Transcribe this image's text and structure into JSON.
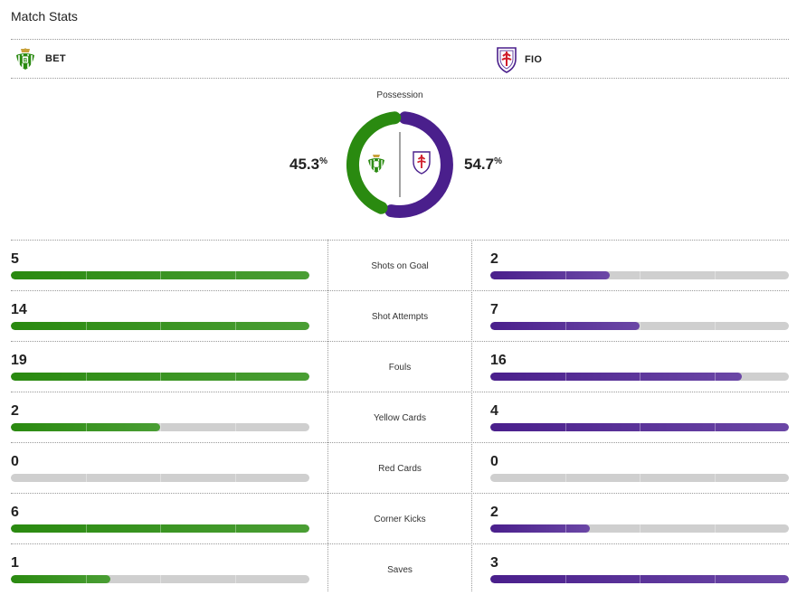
{
  "header": {
    "title": "Match Stats"
  },
  "teams": {
    "home": {
      "abbr": "BET",
      "color": "#2a8a10",
      "crest": "betis-crest-icon"
    },
    "away": {
      "abbr": "FIO",
      "color": "#4a1f8c",
      "crest": "fiorentina-crest-icon"
    }
  },
  "possession": {
    "label": "Possession",
    "home_value": "45.3",
    "away_value": "54.7",
    "unit": "%"
  },
  "stats": [
    {
      "label": "Shots on Goal",
      "home": "5",
      "away": "2"
    },
    {
      "label": "Shot Attempts",
      "home": "14",
      "away": "7"
    },
    {
      "label": "Fouls",
      "home": "19",
      "away": "16"
    },
    {
      "label": "Yellow Cards",
      "home": "2",
      "away": "4"
    },
    {
      "label": "Red Cards",
      "home": "0",
      "away": "0"
    },
    {
      "label": "Corner Kicks",
      "home": "6",
      "away": "2"
    },
    {
      "label": "Saves",
      "home": "1",
      "away": "3"
    }
  ]
}
